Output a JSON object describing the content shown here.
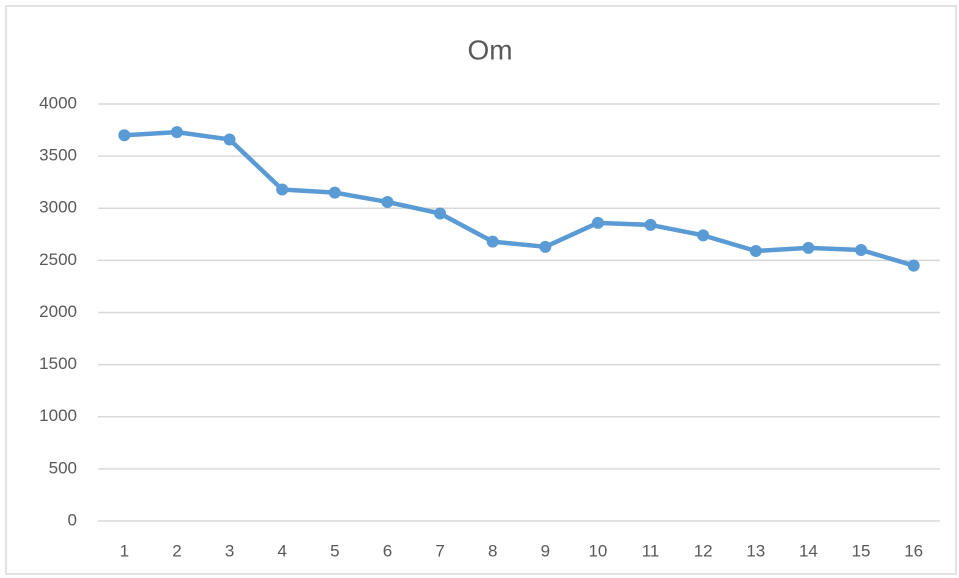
{
  "chart_data": {
    "type": "line",
    "title": "Om",
    "categories": [
      "1",
      "2",
      "3",
      "4",
      "5",
      "6",
      "7",
      "8",
      "9",
      "10",
      "11",
      "12",
      "13",
      "14",
      "15",
      "16"
    ],
    "series": [
      {
        "name": "Om",
        "color": "#5b9bd5",
        "values": [
          3700,
          3730,
          3660,
          3180,
          3150,
          3060,
          2950,
          2680,
          2630,
          2860,
          2840,
          2740,
          2590,
          2620,
          2600,
          2450
        ]
      }
    ],
    "ylim": [
      0,
      4000
    ],
    "yticks": [
      0,
      500,
      1000,
      1500,
      2000,
      2500,
      3000,
      3500,
      4000
    ],
    "grid": true
  }
}
